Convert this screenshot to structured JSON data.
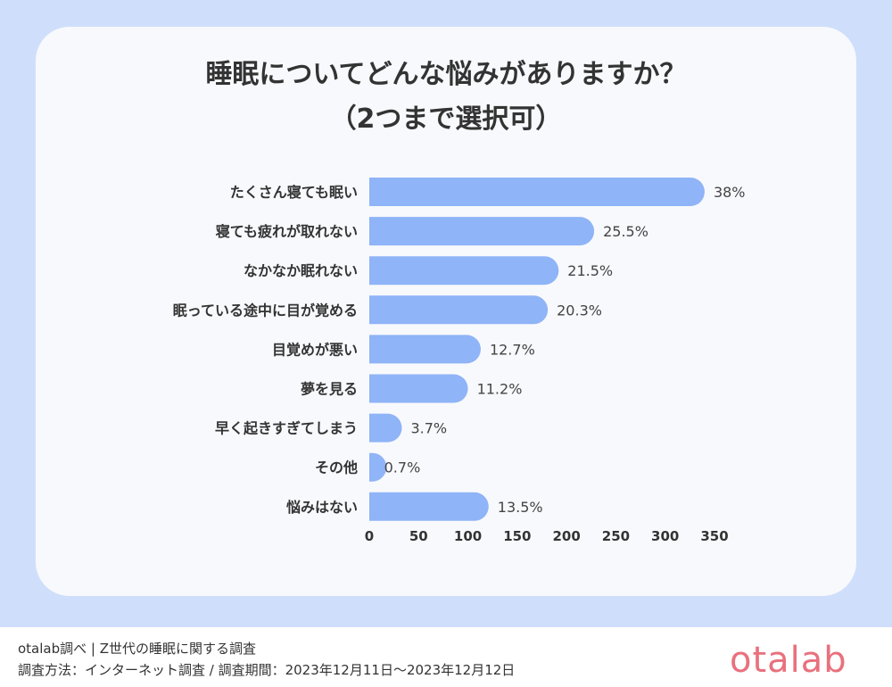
{
  "title": {
    "line1": "睡眠についてどんな悩みがありますか？",
    "line2": "（2つまで選択可）"
  },
  "colors": {
    "background": "#cfdffb",
    "card": "#f8f9fd",
    "bar": "#8fb4f7",
    "logo": "#e8717d"
  },
  "chart_data": {
    "type": "bar",
    "orientation": "horizontal",
    "categories": [
      "たくさん寝ても眠い",
      "寝ても疲れが取れない",
      "なかなか眠れない",
      "眠っている途中に目が覚める",
      "目覚めが悪い",
      "夢を見る",
      "早く起きすぎてしまう",
      "その他",
      "悩みはない"
    ],
    "values": [
      340,
      228,
      192,
      181,
      113,
      100,
      33,
      6,
      121
    ],
    "data_labels": [
      "38%",
      "25.5%",
      "21.5%",
      "20.3%",
      "12.7%",
      "11.2%",
      "3.7%",
      "0.7%",
      "13.5%"
    ],
    "xlim": [
      0,
      350
    ],
    "ticks": [
      "0",
      "50",
      "100",
      "150",
      "200",
      "250",
      "300",
      "350"
    ],
    "grid": false,
    "legend": "none"
  },
  "footer": {
    "line1": "otalab調べ | Z世代の睡眠に関する調査",
    "line2": "調査方法：インターネット調査 / 調査期間：2023年12月11日～2023年12月12日"
  },
  "logo": {
    "text": "otalab"
  }
}
